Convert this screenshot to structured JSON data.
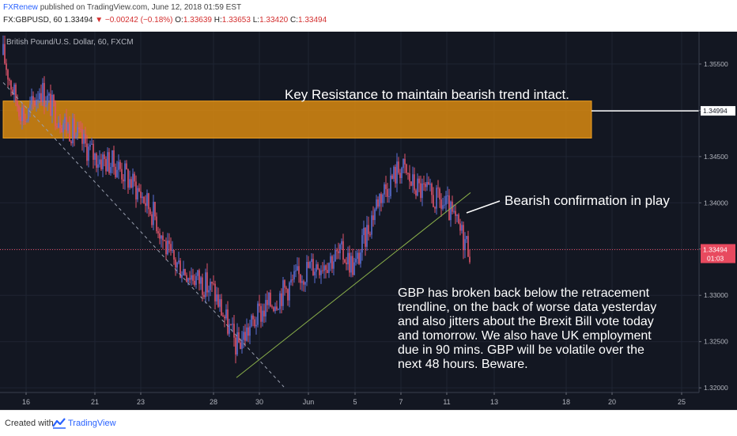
{
  "header": {
    "author": "FXRenew",
    "published_text": "published on TradingView.com, June 12, 2018 01:59 EST",
    "symbol": "FX:GBPUSD, 60",
    "last": "1.33494",
    "change": "−0.00242 (−0.18%)",
    "open_label": "O:",
    "open": "1.33639",
    "high_label": "H:",
    "high": "1.33653",
    "low_label": "L:",
    "low": "1.33420",
    "close_label": "C:",
    "close": "1.33494"
  },
  "colors": {
    "background": "#131722",
    "up_candle": "#5b6fd6",
    "down_candle": "#e0536a",
    "resistance_fill": "#d98a10",
    "trendline": "#8ab04a",
    "price_line": "#e84a5f"
  },
  "chart_data": {
    "type": "candlestick",
    "title": "British Pound/U.S. Dollar, 60, FXCM",
    "x_tick_labels": [
      "16",
      "21",
      "23",
      "28",
      "30",
      "Jun",
      "5",
      "7",
      "11",
      "13",
      "18",
      "20",
      "25"
    ],
    "y_tick_labels": [
      "1.35500",
      "1.35000",
      "1.34500",
      "1.34000",
      "1.33500",
      "1.33000",
      "1.32500",
      "1.32000"
    ],
    "ylim": [
      1.3195,
      1.3585
    ],
    "x_dates": [
      "2018-05-16",
      "2018-05-21",
      "2018-05-23",
      "2018-05-28",
      "2018-05-30",
      "2018-06-01",
      "2018-06-05",
      "2018-06-07",
      "2018-06-11",
      "2018-06-13",
      "2018-06-18",
      "2018-06-20",
      "2018-06-25"
    ],
    "price_path": [
      [
        "2018-05-14",
        1.356
      ],
      [
        "2018-05-15",
        1.3515
      ],
      [
        "2018-05-16",
        1.349
      ],
      [
        "2018-05-17",
        1.3525
      ],
      [
        "2018-05-18",
        1.35
      ],
      [
        "2018-05-21",
        1.345
      ],
      [
        "2018-05-22",
        1.344
      ],
      [
        "2018-05-23",
        1.341
      ],
      [
        "2018-05-24",
        1.3385
      ],
      [
        "2018-05-25",
        1.334
      ],
      [
        "2018-05-28",
        1.3305
      ],
      [
        "2018-05-29",
        1.3245
      ],
      [
        "2018-05-30",
        1.328
      ],
      [
        "2018-05-31",
        1.3305
      ],
      [
        "2018-06-01",
        1.333
      ],
      [
        "2018-06-04",
        1.3345
      ],
      [
        "2018-06-05",
        1.333
      ],
      [
        "2018-06-06",
        1.3405
      ],
      [
        "2018-06-07",
        1.344
      ],
      [
        "2018-06-08",
        1.342
      ],
      [
        "2018-06-11",
        1.3395
      ],
      [
        "2018-06-12",
        1.3349
      ]
    ],
    "last_price": "1.33494",
    "last_price_value": 1.33494,
    "time_to_close": "01:03",
    "resistance_line_label": "1.34994",
    "resistance_line_value": 1.34994,
    "resistance_zone": [
      1.347,
      1.351
    ],
    "support_trendline": [
      [
        "2018-05-29",
        1.3211
      ],
      [
        "2018-06-12",
        1.3411
      ]
    ],
    "retracement_line": [
      [
        "2018-05-14",
        1.353
      ],
      [
        "2018-05-31",
        1.3201
      ]
    ],
    "annotations": {
      "resistance": "Key Resistance to maintain bearish trend intact.",
      "bearish": "Bearish confirmation in play",
      "note_lines": [
        "GBP has broken back below the retracement",
        "trendline, on the back of worse data yesterday",
        "and also jitters about the Brexit Bill vote today",
        "and tomorrow. We also have UK employment",
        "due in 90 mins. GBP will be volatile over the",
        "next 48 hours. Beware."
      ]
    }
  },
  "footer": {
    "created_with": "Created with",
    "brand": "TradingView",
    "logo_icon": "tradingview-logo-icon"
  }
}
